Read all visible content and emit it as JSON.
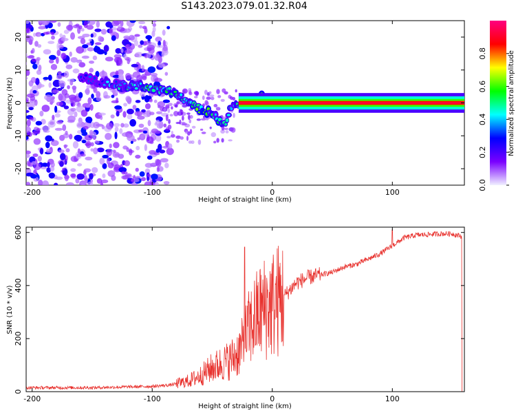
{
  "title": "S143.2023.079.01.32.R04",
  "chart_data": [
    {
      "type": "heatmap",
      "xlabel": "Height of straight line (km)",
      "ylabel": "Frequency (Hz)",
      "xlim": [
        -205,
        160
      ],
      "ylim": [
        -25,
        25
      ],
      "xticks": [
        -200,
        -100,
        0,
        100
      ],
      "yticks": [
        -20,
        -10,
        0,
        10,
        20
      ],
      "grid": false,
      "colorbar": {
        "label": "Normalized spectral amplitude",
        "range": [
          0,
          1
        ],
        "ticks": [
          "0.0",
          "0.2",
          "0.4",
          "0.6",
          "0.8"
        ],
        "tick_values": [
          0,
          0.2,
          0.4,
          0.6,
          0.8
        ],
        "colormap": [
          "#f0f0ff",
          "#7a00ff",
          "#0000ff",
          "#00ffff",
          "#00ff00",
          "#ffff00",
          "#ff0000",
          "#ff0080"
        ]
      },
      "ridge": {
        "x": [
          -160,
          -150,
          -135,
          -120,
          -110,
          -100,
          -90,
          -80,
          -70,
          -60,
          -50,
          -45,
          -40,
          -35,
          -30,
          -25,
          -20,
          -15,
          -10,
          -5,
          0,
          10,
          50,
          100,
          160
        ],
        "frequency": [
          8,
          7,
          6,
          5,
          5,
          4,
          4,
          3,
          0,
          -2,
          -3,
          -5,
          -7,
          -2,
          -1,
          0,
          0,
          1,
          2,
          1,
          0,
          0,
          0,
          0,
          0
        ],
        "amplitude": [
          0.3,
          0.35,
          0.4,
          0.5,
          0.5,
          0.55,
          0.55,
          0.5,
          0.55,
          0.6,
          0.55,
          0.55,
          0.5,
          0.5,
          0.55,
          0.6,
          0.65,
          0.6,
          0.6,
          0.6,
          0.7,
          0.85,
          0.9,
          0.95,
          0.95
        ]
      }
    },
    {
      "type": "line",
      "xlabel": "Height of straight line (km)",
      "ylabel": "SNR (10 * v/v)",
      "xlim": [
        -205,
        160
      ],
      "ylim": [
        0,
        620
      ],
      "xticks": [
        -200,
        -100,
        0,
        100
      ],
      "yticks": [
        0,
        200,
        400,
        600
      ],
      "grid": false,
      "series": [
        {
          "color": "#e8322e",
          "x": [
            -205,
            -180,
            -150,
            -120,
            -100,
            -85,
            -80,
            -70,
            -60,
            -50,
            -40,
            -35,
            -30,
            -25,
            -20,
            -15,
            -10,
            -5,
            0,
            10,
            20,
            30,
            40,
            50,
            60,
            70,
            80,
            90,
            100,
            110,
            120,
            140,
            150,
            158
          ],
          "y": [
            15,
            15,
            15,
            18,
            20,
            25,
            30,
            40,
            60,
            90,
            110,
            120,
            140,
            170,
            230,
            270,
            300,
            320,
            330,
            360,
            410,
            430,
            440,
            450,
            470,
            480,
            500,
            520,
            550,
            580,
            590,
            595,
            595,
            585
          ]
        }
      ],
      "spikes": [
        {
          "x": -23,
          "y": 545
        },
        {
          "x": 100,
          "y": 610
        }
      ]
    }
  ]
}
